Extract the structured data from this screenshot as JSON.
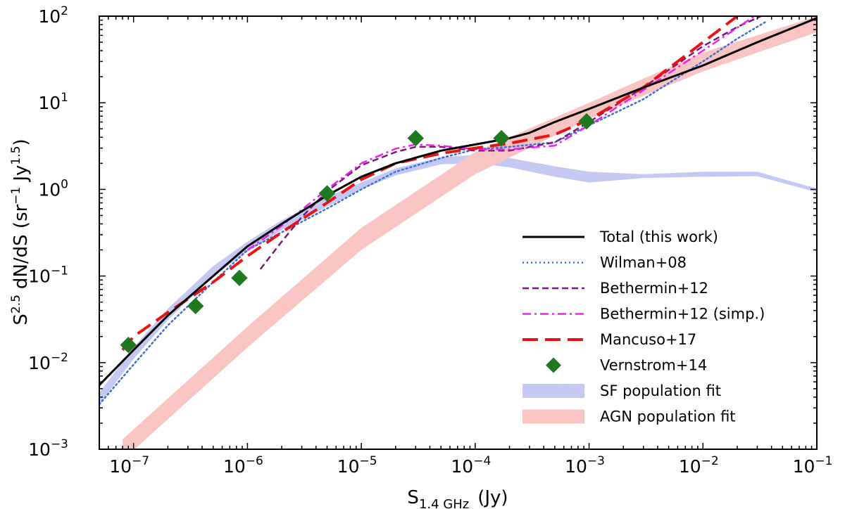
{
  "chart_data": {
    "type": "line",
    "xlabel": {
      "base": "S",
      "sub": "1.4 GHz",
      "unit": "(Jy)"
    },
    "ylabel": {
      "base": "S",
      "sup": "2.5",
      "rest": "dN/dS (sr",
      "sup2": "−1",
      "rest2": "Jy",
      "sup3": "1.5",
      "end": ")"
    },
    "xscale": "log",
    "yscale": "log",
    "xlim": [
      5e-08,
      0.1
    ],
    "ylim": [
      0.001,
      100
    ],
    "x_ticks": [
      {
        "value": 1e-07,
        "base": "10",
        "exp": "−7"
      },
      {
        "value": 1e-06,
        "base": "10",
        "exp": "−6"
      },
      {
        "value": 1e-05,
        "base": "10",
        "exp": "−5"
      },
      {
        "value": 0.0001,
        "base": "10",
        "exp": "−4"
      },
      {
        "value": 0.001,
        "base": "10",
        "exp": "−3"
      },
      {
        "value": 0.01,
        "base": "10",
        "exp": "−2"
      },
      {
        "value": 0.1,
        "base": "10",
        "exp": "−1"
      }
    ],
    "y_ticks": [
      {
        "value": 0.001,
        "base": "10",
        "exp": "−3"
      },
      {
        "value": 0.01,
        "base": "10",
        "exp": "−2"
      },
      {
        "value": 0.1,
        "base": "10",
        "exp": "−1"
      },
      {
        "value": 1,
        "base": "10",
        "exp": "0"
      },
      {
        "value": 10,
        "base": "10",
        "exp": "1"
      },
      {
        "value": 100,
        "base": "10",
        "exp": "2"
      }
    ],
    "legend_position": "lower-right",
    "bands": [
      {
        "name": "SF population fit",
        "color": "#c6c8f4",
        "x": [
          5e-08,
          1e-07,
          2e-07,
          5e-07,
          1e-06,
          2e-06,
          5e-06,
          1e-05,
          2e-05,
          5e-05,
          0.0001,
          0.0002,
          0.0005,
          0.001,
          0.003,
          0.01,
          0.03,
          0.1
        ],
        "lower": [
          0.0033,
          0.011,
          0.031,
          0.1,
          0.19,
          0.34,
          0.63,
          1.0,
          1.45,
          1.95,
          2.0,
          1.8,
          1.4,
          1.2,
          1.35,
          1.4,
          1.42,
          0.93
        ],
        "upper": [
          0.0045,
          0.015,
          0.042,
          0.13,
          0.25,
          0.44,
          0.82,
          1.2,
          1.75,
          2.35,
          2.5,
          2.3,
          1.85,
          1.6,
          1.5,
          1.6,
          1.6,
          1.02
        ]
      },
      {
        "name": "AGN population fit",
        "color": "#f9c4c2",
        "x": [
          8e-08,
          1e-06,
          1e-05,
          0.0001,
          0.001,
          0.003,
          0.01,
          0.03,
          0.1
        ],
        "lower": [
          0.00075,
          0.015,
          0.2,
          1.5,
          6.5,
          12,
          23,
          38,
          65
        ],
        "upper": [
          0.0013,
          0.026,
          0.36,
          2.7,
          10,
          19,
          38,
          60,
          100
        ]
      }
    ],
    "series": [
      {
        "name": "Wilman+08",
        "color": "#3a6fd8",
        "style": "dotted",
        "x": [
          5e-08,
          1e-07,
          2e-07,
          5e-07,
          1e-06,
          2e-06,
          5e-06,
          1e-05,
          2e-05,
          5e-05,
          0.0001,
          0.0002,
          0.0005,
          0.001,
          0.003,
          0.01,
          0.02,
          0.035
        ],
        "y": [
          0.0033,
          0.0095,
          0.027,
          0.085,
          0.2,
          0.32,
          0.6,
          1.0,
          1.6,
          2.3,
          2.9,
          3.1,
          3.5,
          5.5,
          11,
          30,
          55,
          85
        ]
      },
      {
        "name": "Bethermin+12",
        "color": "#7a1a7a",
        "style": "dashed",
        "x": [
          1.3e-06,
          2e-06,
          3e-06,
          5e-06,
          1e-05,
          2e-05,
          3e-05,
          5e-05,
          0.0001,
          0.0002,
          0.0005,
          0.001,
          0.003,
          0.01,
          0.02,
          0.035
        ],
        "y": [
          0.12,
          0.25,
          0.48,
          0.95,
          1.9,
          2.7,
          3.1,
          3.1,
          2.8,
          2.8,
          3.5,
          6.0,
          15,
          45,
          75,
          105
        ]
      },
      {
        "name": "Bethermin+12 (simp.)",
        "color": "#ee22ee",
        "style": "dashdot",
        "x": [
          1e-06,
          2e-06,
          5e-06,
          1e-05,
          2e-05,
          3e-05,
          5e-05,
          0.0001,
          0.0002,
          0.0005,
          0.001,
          0.003,
          0.01,
          0.03
        ],
        "y": [
          0.2,
          0.38,
          1.0,
          2.0,
          2.95,
          3.3,
          3.2,
          2.9,
          2.9,
          3.2,
          5.5,
          14,
          40,
          105
        ]
      },
      {
        "name": "Mancuso+17",
        "color": "#e81414",
        "style": "longdash",
        "x": [
          8e-08,
          1e-07,
          2e-07,
          5e-07,
          1e-06,
          2e-06,
          5e-06,
          1e-05,
          2e-05,
          5e-05,
          0.0001,
          0.0002,
          0.0005,
          0.001,
          0.003,
          0.01,
          0.02
        ],
        "y": [
          0.014,
          0.02,
          0.038,
          0.085,
          0.17,
          0.32,
          0.7,
          1.3,
          2.0,
          2.6,
          3.0,
          3.4,
          4.3,
          6.4,
          15,
          50,
          100
        ]
      },
      {
        "name": "Total (this work)",
        "color": "#000000",
        "style": "solid",
        "x": [
          5e-08,
          1e-07,
          2e-07,
          5e-07,
          1e-06,
          2e-06,
          5e-06,
          1e-05,
          2e-05,
          5e-05,
          0.0001,
          0.0002,
          0.0003,
          0.0005,
          0.001,
          0.003,
          0.01,
          0.03,
          0.1
        ],
        "y": [
          0.0055,
          0.014,
          0.035,
          0.1,
          0.22,
          0.4,
          0.85,
          1.4,
          2.0,
          2.8,
          3.3,
          3.9,
          4.5,
          6.0,
          8.5,
          15,
          27,
          50,
          95
        ]
      }
    ],
    "points": {
      "name": "Vernstrom+14",
      "color": "#1f7a1f",
      "marker": "diamond",
      "x": [
        9e-08,
        3.5e-07,
        8.5e-07,
        5e-06,
        3e-05,
        0.00017,
        0.00095
      ],
      "y": [
        0.016,
        0.045,
        0.095,
        0.9,
        3.9,
        3.9,
        6.1
      ]
    },
    "legend_order": [
      "Total (this work)",
      "Wilman+08",
      "Bethermin+12",
      "Bethermin+12 (simp.)",
      "Mancuso+17",
      "Vernstrom+14",
      "SF population fit",
      "AGN population fit"
    ]
  }
}
